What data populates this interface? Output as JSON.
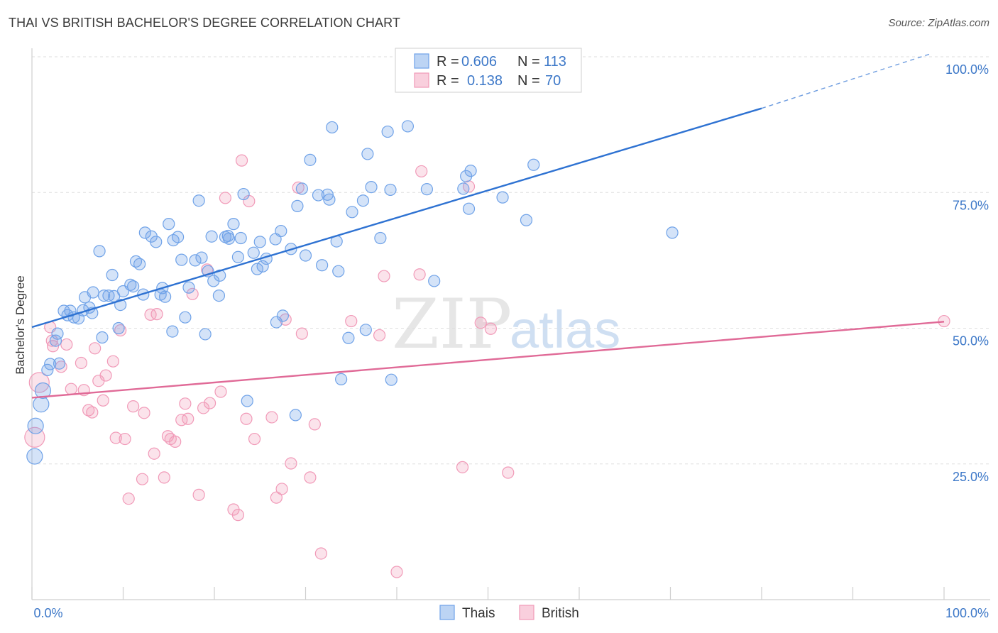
{
  "title": "THAI VS BRITISH BACHELOR'S DEGREE CORRELATION CHART",
  "source": "Source: ZipAtlas.com",
  "watermark": {
    "zip": "ZIP",
    "atlas": "atlas"
  },
  "legend": {
    "rows": [
      {
        "r_label": "R =",
        "r_value": "0.606",
        "n_label": "N =",
        "n_value": "113",
        "color": "#6fa2e8"
      },
      {
        "r_label": "R =",
        "r_value": "0.138",
        "n_label": "N =",
        "n_value": "70",
        "color": "#f19ab8"
      }
    ]
  },
  "bottom_legend": [
    {
      "label": "Thais",
      "color": "#6fa2e8"
    },
    {
      "label": "British",
      "color": "#f19ab8"
    }
  ],
  "chart_data": {
    "type": "scatter",
    "title": "THAI VS BRITISH BACHELOR'S DEGREE CORRELATION CHART",
    "xlabel": "",
    "ylabel": "Bachelor's Degree",
    "xlim": [
      0,
      100
    ],
    "ylim": [
      0,
      100
    ],
    "x_tick_labels": [
      "0.0%",
      "100.0%"
    ],
    "y_ticks": [
      25,
      50,
      75,
      100
    ],
    "y_tick_labels": [
      "25.0%",
      "50.0%",
      "75.0%",
      "100.0%"
    ],
    "grid": true,
    "legend_position": "top-center",
    "series": [
      {
        "name": "Thais",
        "color": "#6fa2e8",
        "line_color": "#2e72d2",
        "trend": {
          "x": [
            0,
            80
          ],
          "y": [
            50.2,
            90.5
          ],
          "extend_to": [
            100,
            100.5
          ]
        },
        "points": [
          [
            0.3,
            26.4
          ],
          [
            0.4,
            32
          ],
          [
            1,
            36
          ],
          [
            1.2,
            38.5
          ],
          [
            1.7,
            42.3
          ],
          [
            2,
            43.4
          ],
          [
            2.6,
            47.7
          ],
          [
            2.8,
            49
          ],
          [
            3,
            43.5
          ],
          [
            3.5,
            53.2
          ],
          [
            3.9,
            52.4
          ],
          [
            4.2,
            53.2
          ],
          [
            4.6,
            52
          ],
          [
            5.1,
            51.8
          ],
          [
            5.6,
            53.3
          ],
          [
            5.8,
            55.7
          ],
          [
            6.3,
            53.8
          ],
          [
            6.6,
            52.8
          ],
          [
            6.7,
            56.6
          ],
          [
            7.4,
            64.2
          ],
          [
            7.7,
            48.3
          ],
          [
            7.9,
            56
          ],
          [
            8.4,
            56
          ],
          [
            8.8,
            59.8
          ],
          [
            9,
            55.9
          ],
          [
            9.5,
            50
          ],
          [
            9.7,
            54.3
          ],
          [
            10,
            56.8
          ],
          [
            10.8,
            58
          ],
          [
            11.1,
            57.7
          ],
          [
            11.4,
            62.3
          ],
          [
            11.8,
            61.8
          ],
          [
            12.2,
            56.2
          ],
          [
            12.4,
            67.6
          ],
          [
            13.1,
            66.9
          ],
          [
            13.6,
            65.9
          ],
          [
            14.1,
            56.2
          ],
          [
            14.3,
            57.4
          ],
          [
            14.6,
            55.8
          ],
          [
            15,
            69.2
          ],
          [
            15.4,
            49.4
          ],
          [
            15.5,
            66.2
          ],
          [
            16,
            66.8
          ],
          [
            16.4,
            62.6
          ],
          [
            16.8,
            52
          ],
          [
            17.2,
            57.5
          ],
          [
            17.9,
            62.5
          ],
          [
            18.3,
            73.5
          ],
          [
            18.6,
            63
          ],
          [
            19,
            48.9
          ],
          [
            19.3,
            60.5
          ],
          [
            19.7,
            66.9
          ],
          [
            19.9,
            58.7
          ],
          [
            20.5,
            56
          ],
          [
            20.6,
            59.7
          ],
          [
            21.2,
            66.8
          ],
          [
            21.5,
            67
          ],
          [
            21.6,
            66.5
          ],
          [
            22.1,
            69.2
          ],
          [
            22.6,
            63.1
          ],
          [
            22.9,
            66.6
          ],
          [
            23.2,
            74.7
          ],
          [
            23.6,
            36.6
          ],
          [
            24.3,
            63.9
          ],
          [
            24.7,
            60.9
          ],
          [
            25,
            65.9
          ],
          [
            25.3,
            61.4
          ],
          [
            25.7,
            62.8
          ],
          [
            26.7,
            66.4
          ],
          [
            26.8,
            51.1
          ],
          [
            27.3,
            67.9
          ],
          [
            27.5,
            52.3
          ],
          [
            28.4,
            64.6
          ],
          [
            28.9,
            34
          ],
          [
            29.1,
            72.5
          ],
          [
            29.6,
            75.7
          ],
          [
            30,
            63.4
          ],
          [
            30.5,
            81
          ],
          [
            31.4,
            74.5
          ],
          [
            31.8,
            61.6
          ],
          [
            32.4,
            74.6
          ],
          [
            32.6,
            73.7
          ],
          [
            32.9,
            87
          ],
          [
            33.4,
            66
          ],
          [
            33.6,
            60.5
          ],
          [
            33.9,
            40.6
          ],
          [
            34.7,
            48.2
          ],
          [
            35.1,
            71.4
          ],
          [
            36.3,
            73.5
          ],
          [
            36.6,
            49.7
          ],
          [
            36.8,
            82.1
          ],
          [
            37.2,
            76
          ],
          [
            38.2,
            66.6
          ],
          [
            39,
            86.2
          ],
          [
            39.3,
            75.5
          ],
          [
            39.4,
            40.5
          ],
          [
            41.2,
            87.2
          ],
          [
            43.3,
            75.6
          ],
          [
            44.1,
            58.7
          ],
          [
            47.3,
            75.7
          ],
          [
            47.6,
            78
          ],
          [
            47.9,
            72
          ],
          [
            48.1,
            79
          ],
          [
            51.6,
            74.1
          ],
          [
            54.2,
            69.9
          ],
          [
            55,
            80.1
          ],
          [
            70.2,
            67.6
          ]
        ]
      },
      {
        "name": "British",
        "color": "#f19ab8",
        "line_color": "#e06a97",
        "trend": {
          "x": [
            0,
            100
          ],
          "y": [
            37.2,
            51.2
          ]
        },
        "points": [
          [
            0.3,
            29.9
          ],
          [
            0.8,
            40
          ],
          [
            2,
            50.2
          ],
          [
            2.2,
            47.7
          ],
          [
            2.3,
            46.7
          ],
          [
            3.2,
            42.9
          ],
          [
            3.8,
            47
          ],
          [
            4.3,
            38.8
          ],
          [
            5.4,
            43.6
          ],
          [
            5.7,
            38.6
          ],
          [
            6.2,
            34.9
          ],
          [
            6.6,
            34.5
          ],
          [
            6.9,
            46.3
          ],
          [
            7.3,
            40.3
          ],
          [
            7.8,
            36.7
          ],
          [
            8.1,
            41.3
          ],
          [
            8.9,
            43.9
          ],
          [
            9.2,
            29.8
          ],
          [
            9.7,
            49.6
          ],
          [
            10.2,
            29.6
          ],
          [
            10.6,
            18.6
          ],
          [
            11.1,
            35.6
          ],
          [
            12.1,
            22.2
          ],
          [
            12.3,
            34.4
          ],
          [
            13,
            52.5
          ],
          [
            13.4,
            26.9
          ],
          [
            13.7,
            52.6
          ],
          [
            14.5,
            22.5
          ],
          [
            14.9,
            30.1
          ],
          [
            15.2,
            29.6
          ],
          [
            15.7,
            29.1
          ],
          [
            16.4,
            33.1
          ],
          [
            16.8,
            36.1
          ],
          [
            17.1,
            33.3
          ],
          [
            17.6,
            56.3
          ],
          [
            18.3,
            19.3
          ],
          [
            18.8,
            35.3
          ],
          [
            19.2,
            60.8
          ],
          [
            19.5,
            36.2
          ],
          [
            20.7,
            38.3
          ],
          [
            21.2,
            74
          ],
          [
            22.1,
            16.6
          ],
          [
            22.6,
            15.6
          ],
          [
            23,
            80.9
          ],
          [
            23.5,
            33.3
          ],
          [
            23.8,
            73.4
          ],
          [
            24.4,
            29.6
          ],
          [
            26.3,
            33.6
          ],
          [
            26.8,
            18.8
          ],
          [
            27.4,
            20.4
          ],
          [
            27.8,
            51.6
          ],
          [
            28.4,
            25.1
          ],
          [
            29.2,
            75.9
          ],
          [
            29.6,
            49
          ],
          [
            30.5,
            22.5
          ],
          [
            31,
            32.3
          ],
          [
            31.7,
            8.5
          ],
          [
            35,
            51.3
          ],
          [
            38.1,
            48.7
          ],
          [
            38.6,
            59.6
          ],
          [
            40,
            5.1
          ],
          [
            42.5,
            59.9
          ],
          [
            42.7,
            78.9
          ],
          [
            47.2,
            24.4
          ],
          [
            47.9,
            76.1
          ],
          [
            49.2,
            51
          ],
          [
            50.3,
            49.9
          ],
          [
            52.2,
            23.4
          ],
          [
            100,
            51.3
          ]
        ]
      }
    ]
  }
}
